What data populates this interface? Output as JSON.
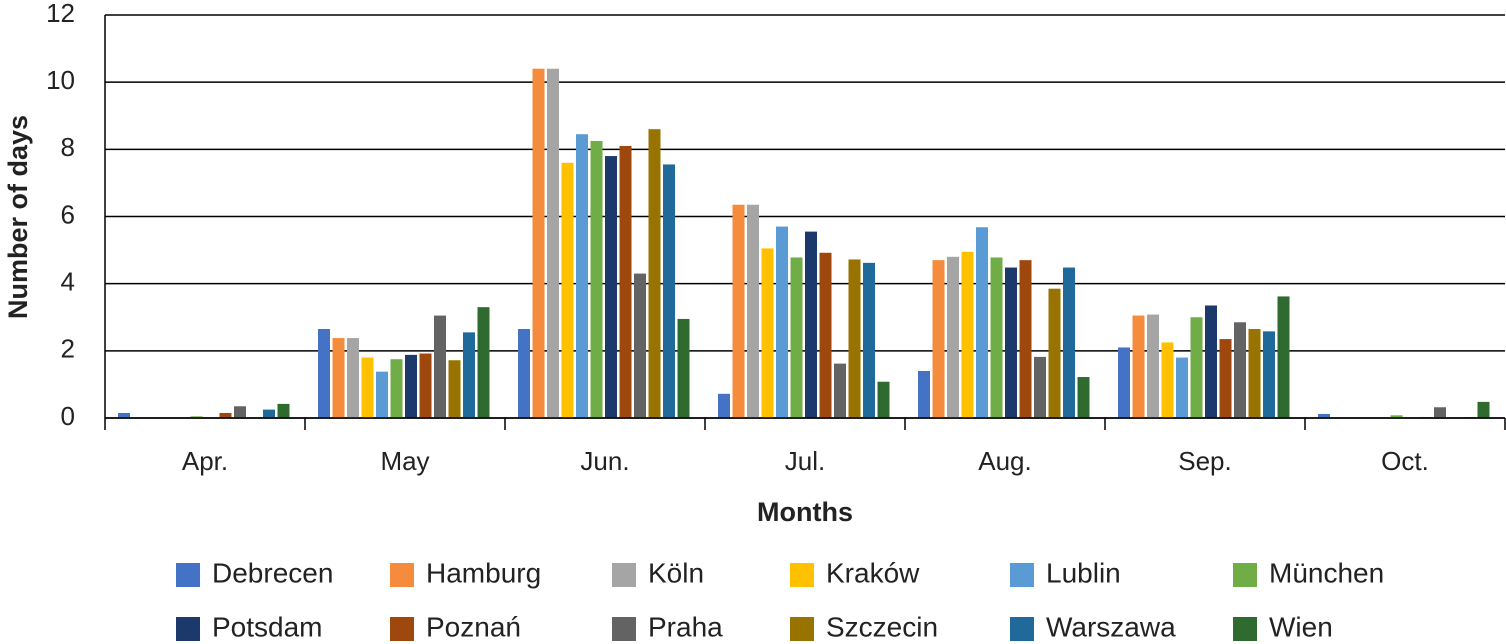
{
  "chart_data": {
    "type": "bar",
    "x_label": "Months",
    "y_label": "Number of days",
    "categories": [
      "Apr.",
      "May",
      "Jun.",
      "Jul.",
      "Aug.",
      "Sep.",
      "Oct."
    ],
    "ylim": [
      0,
      12
    ],
    "yticks": [
      0,
      2,
      4,
      6,
      8,
      10,
      12
    ],
    "grid": true,
    "legend": "bottom",
    "series": [
      {
        "name": "Debrecen",
        "color": "#4472c4",
        "values": [
          0.15,
          2.65,
          2.65,
          0.72,
          1.4,
          2.1,
          0.12
        ]
      },
      {
        "name": "Hamburg",
        "color": "#f58b3c",
        "values": [
          0,
          2.38,
          10.4,
          6.35,
          4.7,
          3.05,
          0
        ]
      },
      {
        "name": "Köln",
        "color": "#a5a5a5",
        "values": [
          0,
          2.38,
          10.4,
          6.35,
          4.8,
          3.08,
          0
        ]
      },
      {
        "name": "Kraków",
        "color": "#ffc000",
        "values": [
          0,
          1.8,
          7.6,
          5.05,
          4.95,
          2.25,
          0
        ]
      },
      {
        "name": "Lublin",
        "color": "#5b9bd5",
        "values": [
          0,
          1.38,
          8.45,
          5.7,
          5.68,
          1.8,
          0
        ]
      },
      {
        "name": "München",
        "color": "#70ad47",
        "values": [
          0.05,
          1.75,
          8.25,
          4.78,
          4.78,
          3.0,
          0.08
        ]
      },
      {
        "name": "Potsdam",
        "color": "#1b3a6b",
        "values": [
          0,
          1.88,
          7.8,
          5.55,
          4.48,
          3.35,
          0
        ]
      },
      {
        "name": "Poznań",
        "color": "#9e480e",
        "values": [
          0.15,
          1.92,
          8.1,
          4.92,
          4.7,
          2.35,
          0.03
        ]
      },
      {
        "name": "Praha",
        "color": "#636363",
        "values": [
          0.35,
          3.05,
          4.3,
          1.62,
          1.82,
          2.85,
          0.32
        ]
      },
      {
        "name": "Szczecin",
        "color": "#997300",
        "values": [
          0,
          1.72,
          8.6,
          4.72,
          3.85,
          2.65,
          0
        ]
      },
      {
        "name": "Warszawa",
        "color": "#1f6a9a",
        "values": [
          0.25,
          2.55,
          7.55,
          4.62,
          4.48,
          2.58,
          0.03
        ]
      },
      {
        "name": "Wien",
        "color": "#2f6b2f",
        "values": [
          0.42,
          3.3,
          2.95,
          1.08,
          1.22,
          3.62,
          0.48
        ]
      }
    ]
  }
}
